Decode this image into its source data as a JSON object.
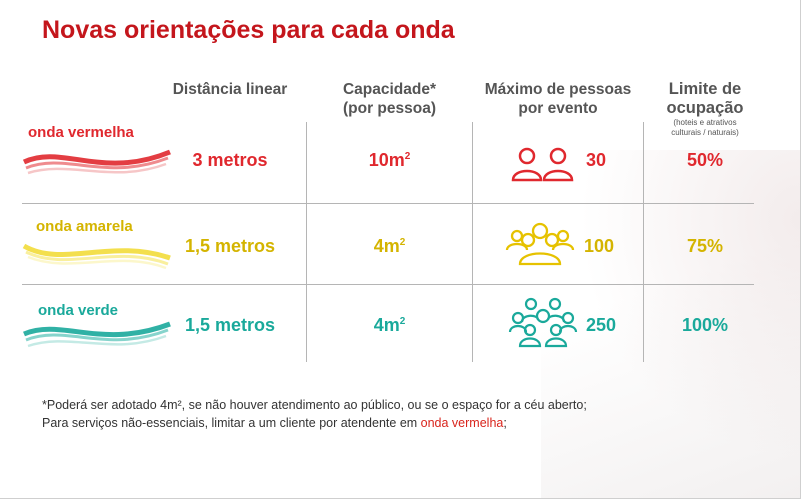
{
  "title": "Novas orientações para cada onda",
  "headers": {
    "distancia": "Distância linear",
    "capacidade_l1": "Capacidade*",
    "capacidade_l2": "(por pessoa)",
    "maximo_l1": "Máximo de pessoas",
    "maximo_l2": "por evento",
    "limite_l1": "Limite de",
    "limite_l2": "ocupação",
    "limite_note1": "(hoteis e atrativos",
    "limite_note2": "culturais / naturais)"
  },
  "rows": [
    {
      "label": "onda vermelha",
      "distancia": "3 metros",
      "capacidade": "10m",
      "sup": "2",
      "max": "30",
      "limite": "50%",
      "color": "#e0282e",
      "icon": "two-people-icon"
    },
    {
      "label": "onda amarela",
      "distancia": "1,5 metros",
      "capacidade": "4m",
      "sup": "2",
      "max": "100",
      "limite": "75%",
      "color": "#d4b400",
      "icon": "group-of-people-icon"
    },
    {
      "label": "onda verde",
      "distancia": "1,5 metros",
      "capacidade": "4m",
      "sup": "2",
      "max": "250",
      "limite": "100%",
      "color": "#1aa99b",
      "icon": "crowd-icon"
    }
  ],
  "footnote": {
    "line1": "*Poderá ser adotado 4m², se não houver atendimento ao público, ou se o espaço for a céu aberto;",
    "line2_pre": "Para serviços não-essenciais, limitar a um cliente por atendente em ",
    "line2_red": "onda vermelha",
    "line2_post": ";"
  },
  "colors": {
    "title": "#c4161c",
    "red": "#e0282e",
    "yellow": "#d4b400",
    "green": "#1aa99b"
  }
}
